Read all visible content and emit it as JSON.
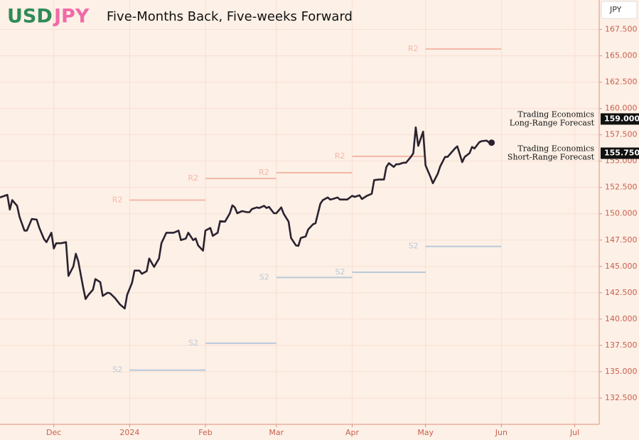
{
  "chart_data": {
    "type": "line",
    "title_parts": [
      "USD",
      "JPY"
    ],
    "title_colors": [
      "#2e8b57",
      "#f06aa8"
    ],
    "subtitle": "Five-Months Back, Five-weeks Forward",
    "currency_button": "JPY",
    "x": [
      -22,
      -19,
      -18,
      -17,
      -15,
      -14,
      -12,
      -11,
      -9,
      -7,
      -6,
      -4,
      -3,
      -1,
      0,
      1,
      3,
      5,
      6,
      8,
      9,
      10,
      12,
      13,
      14,
      16,
      17,
      19,
      20,
      22,
      23,
      25,
      27,
      29,
      30,
      32,
      33,
      35,
      36,
      38,
      39,
      40,
      41,
      43,
      44,
      46,
      47,
      49,
      51,
      52,
      54,
      55,
      57,
      58,
      59,
      61,
      62,
      64,
      65,
      67,
      68,
      70,
      72,
      73,
      74,
      75,
      77,
      79,
      80,
      81,
      83,
      84,
      86,
      87,
      88,
      90,
      91,
      93,
      94,
      96,
      97,
      99,
      100,
      101,
      103,
      104,
      106,
      107,
      109,
      110,
      112,
      113,
      114,
      116,
      117,
      119,
      120,
      122,
      123,
      125,
      126,
      128,
      129,
      130,
      131,
      133,
      135,
      136,
      137,
      139,
      140,
      141,
      143,
      144,
      146,
      147,
      148,
      149,
      151,
      152,
      154,
      155,
      157,
      158,
      160,
      161,
      164,
      165,
      167,
      168,
      170,
      171,
      172,
      174,
      175,
      177,
      178,
      179
    ],
    "series": [
      {
        "name": "USDJPY",
        "color": "#2a2230",
        "values": [
          151.55,
          151.8,
          150.4,
          151.3,
          150.75,
          149.7,
          148.4,
          148.4,
          149.5,
          149.45,
          148.7,
          147.6,
          147.3,
          148.2,
          146.7,
          147.2,
          147.2,
          147.3,
          144.1,
          145.0,
          146.2,
          145.5,
          143.0,
          141.9,
          142.25,
          142.8,
          143.8,
          143.5,
          142.2,
          142.5,
          142.45,
          142.0,
          141.4,
          141.0,
          142.3,
          143.45,
          144.6,
          144.6,
          144.3,
          144.55,
          145.75,
          145.35,
          144.95,
          145.75,
          147.2,
          148.2,
          148.2,
          148.2,
          148.4,
          147.5,
          147.65,
          148.2,
          147.5,
          147.65,
          147.0,
          146.5,
          148.4,
          148.65,
          147.9,
          148.2,
          149.3,
          149.25,
          150.05,
          150.8,
          150.6,
          150.05,
          150.25,
          150.15,
          150.15,
          150.45,
          150.6,
          150.55,
          150.75,
          150.55,
          150.65,
          150.05,
          150.05,
          150.6,
          150.0,
          149.25,
          147.7,
          147.0,
          146.95,
          147.7,
          147.85,
          148.5,
          149.0,
          149.1,
          150.95,
          151.3,
          151.55,
          151.35,
          151.4,
          151.55,
          151.35,
          151.35,
          151.35,
          151.7,
          151.6,
          151.75,
          151.4,
          151.7,
          151.8,
          151.9,
          153.2,
          153.25,
          153.25,
          154.45,
          154.8,
          154.45,
          154.7,
          154.7,
          154.85,
          154.85,
          155.4,
          155.75,
          158.2,
          156.45,
          157.8,
          154.6,
          153.5,
          152.9,
          153.8,
          154.5,
          155.4,
          155.4,
          156.2,
          156.4,
          154.9,
          155.4,
          155.75,
          156.35,
          156.2,
          156.8,
          156.9,
          156.95,
          156.75,
          156.75
        ]
      }
    ],
    "levels": [
      {
        "name": "R2",
        "color": "#f4b8a8",
        "start": 31,
        "end": 62,
        "value": 151.3
      },
      {
        "name": "R2",
        "color": "#f4b8a8",
        "start": 62,
        "end": 91,
        "value": 153.35
      },
      {
        "name": "R2",
        "color": "#f4b8a8",
        "start": 91,
        "end": 122,
        "value": 153.9
      },
      {
        "name": "R2",
        "color": "#f4b8a8",
        "start": 122,
        "end": 152,
        "value": 155.45
      },
      {
        "name": "R2",
        "color": "#f4b8a8",
        "start": 152,
        "end": 183,
        "value": 165.65
      },
      {
        "name": "S2",
        "color": "#b9c8dc",
        "start": 31,
        "end": 62,
        "value": 135.15
      },
      {
        "name": "S2",
        "color": "#b9c8dc",
        "start": 62,
        "end": 91,
        "value": 137.7
      },
      {
        "name": "S2",
        "color": "#b9c8dc",
        "start": 91,
        "end": 122,
        "value": 143.95
      },
      {
        "name": "S2",
        "color": "#b9c8dc",
        "start": 122,
        "end": 152,
        "value": 144.45
      },
      {
        "name": "S2",
        "color": "#b9c8dc",
        "start": 152,
        "end": 183,
        "value": 146.9
      }
    ],
    "forecasts": [
      {
        "lines": [
          "Trading Economics",
          "Long-Range Forecast"
        ],
        "value": 159.0,
        "label": "159.000"
      },
      {
        "lines": [
          "Trading Economics",
          "Short-Range Forecast"
        ],
        "value": 155.75,
        "label": "155.750"
      }
    ],
    "xlim": [
      -22,
      223
    ],
    "xticks": [
      {
        "value": 0,
        "label": "Dec"
      },
      {
        "value": 31,
        "label": "2024"
      },
      {
        "value": 62,
        "label": "Feb"
      },
      {
        "value": 91,
        "label": "Mar"
      },
      {
        "value": 122,
        "label": "Apr"
      },
      {
        "value": 152,
        "label": "May"
      },
      {
        "value": 183,
        "label": "Jun"
      },
      {
        "value": 213,
        "label": "Jul"
      }
    ],
    "ylim": [
      130.0,
      170.3
    ],
    "yticks": [
      {
        "value": 132.5,
        "label": "132.500"
      },
      {
        "value": 135,
        "label": "135.000"
      },
      {
        "value": 137.5,
        "label": "137.500"
      },
      {
        "value": 140,
        "label": "140.000"
      },
      {
        "value": 142.5,
        "label": "142.500"
      },
      {
        "value": 145,
        "label": "145.000"
      },
      {
        "value": 147.5,
        "label": "147.500"
      },
      {
        "value": 150,
        "label": "150.000"
      },
      {
        "value": 152.5,
        "label": "152.500"
      },
      {
        "value": 155,
        "label": "155.000"
      },
      {
        "value": 157.5,
        "label": "157.500"
      },
      {
        "value": 160,
        "label": "160.000"
      },
      {
        "value": 162.5,
        "label": "162.500"
      },
      {
        "value": 165,
        "label": "165.000"
      },
      {
        "value": 167.5,
        "label": "167.500"
      }
    ],
    "grid": true
  }
}
